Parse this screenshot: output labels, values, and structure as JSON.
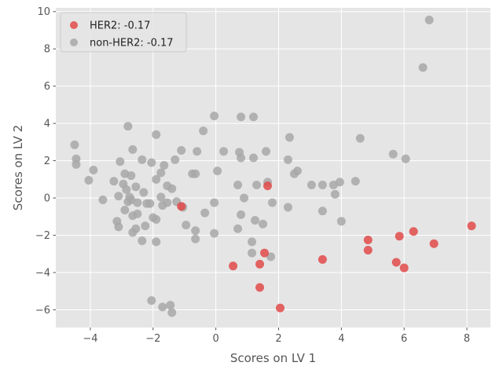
{
  "chart_data": {
    "type": "scatter",
    "title": "",
    "xlabel": "Scores on LV 1",
    "ylabel": "Scores on LV 2",
    "xlim": [
      -5.1,
      8.75
    ],
    "ylim": [
      -6.95,
      10.2
    ],
    "xticks": [
      -4,
      -2,
      0,
      2,
      4,
      6,
      8
    ],
    "yticks": [
      -6,
      -4,
      -2,
      0,
      2,
      4,
      6,
      8,
      10
    ],
    "grid": true,
    "legend_position": "top-left",
    "series": [
      {
        "name": "HER2: -0.17",
        "color": "#e24a4a",
        "points": [
          [
            -1.1,
            -0.45
          ],
          [
            0.55,
            -3.65
          ],
          [
            1.4,
            -3.55
          ],
          [
            1.55,
            -2.95
          ],
          [
            1.65,
            0.65
          ],
          [
            1.4,
            -4.8
          ],
          [
            2.05,
            -5.9
          ],
          [
            3.4,
            -3.3
          ],
          [
            4.85,
            -2.25
          ],
          [
            4.85,
            -2.8
          ],
          [
            5.75,
            -3.45
          ],
          [
            5.85,
            -2.05
          ],
          [
            6.0,
            -3.75
          ],
          [
            6.3,
            -1.8
          ],
          [
            6.95,
            -2.45
          ],
          [
            8.15,
            -1.5
          ]
        ]
      },
      {
        "name": "non-HER2: -0.17",
        "color": "#a8a8a8",
        "points": [
          [
            -4.5,
            2.85
          ],
          [
            -4.45,
            2.1
          ],
          [
            -4.45,
            1.8
          ],
          [
            -4.05,
            0.95
          ],
          [
            -3.9,
            1.5
          ],
          [
            -3.6,
            -0.1
          ],
          [
            -3.25,
            0.9
          ],
          [
            -3.15,
            -1.25
          ],
          [
            -3.1,
            -1.55
          ],
          [
            -3.1,
            0.1
          ],
          [
            -3.05,
            1.95
          ],
          [
            -2.95,
            0.75
          ],
          [
            -2.9,
            1.3
          ],
          [
            -2.9,
            -0.65
          ],
          [
            -2.85,
            0.45
          ],
          [
            -2.8,
            3.85
          ],
          [
            -2.8,
            -0.2
          ],
          [
            -2.75,
            0.05
          ],
          [
            -2.7,
            1.2
          ],
          [
            -2.7,
            -0.1
          ],
          [
            -2.65,
            2.6
          ],
          [
            -2.65,
            -0.95
          ],
          [
            -2.65,
            -1.85
          ],
          [
            -2.55,
            -1.65
          ],
          [
            -2.55,
            0.6
          ],
          [
            -2.5,
            -0.25
          ],
          [
            -2.5,
            -0.85
          ],
          [
            -2.35,
            -2.3
          ],
          [
            -2.35,
            2.05
          ],
          [
            -2.3,
            0.3
          ],
          [
            -2.25,
            -1.5
          ],
          [
            -2.2,
            -0.3
          ],
          [
            -2.1,
            -0.3
          ],
          [
            -2.05,
            1.9
          ],
          [
            -2.05,
            -5.5
          ],
          [
            -2.0,
            -1.05
          ],
          [
            -1.9,
            3.4
          ],
          [
            -1.9,
            1.0
          ],
          [
            -1.9,
            -1.15
          ],
          [
            -1.9,
            -2.35
          ],
          [
            -1.75,
            1.35
          ],
          [
            -1.75,
            0.05
          ],
          [
            -1.7,
            -0.4
          ],
          [
            -1.7,
            -5.85
          ],
          [
            -1.65,
            1.75
          ],
          [
            -1.55,
            0.65
          ],
          [
            -1.55,
            -0.25
          ],
          [
            -1.45,
            -5.75
          ],
          [
            -1.4,
            -6.15
          ],
          [
            -1.4,
            0.5
          ],
          [
            -1.3,
            2.05
          ],
          [
            -1.25,
            -0.2
          ],
          [
            -1.1,
            2.55
          ],
          [
            -1.05,
            -0.5
          ],
          [
            -0.95,
            -1.45
          ],
          [
            -0.75,
            1.3
          ],
          [
            -0.65,
            1.3
          ],
          [
            -0.65,
            -1.75
          ],
          [
            -0.65,
            -2.2
          ],
          [
            -0.6,
            2.5
          ],
          [
            -0.4,
            3.6
          ],
          [
            -0.35,
            -0.8
          ],
          [
            -0.05,
            4.4
          ],
          [
            -0.05,
            -1.9
          ],
          [
            -0.05,
            -0.25
          ],
          [
            0.05,
            1.45
          ],
          [
            0.25,
            2.5
          ],
          [
            0.7,
            0.7
          ],
          [
            0.7,
            -1.65
          ],
          [
            0.75,
            2.45
          ],
          [
            0.8,
            -0.9
          ],
          [
            0.8,
            4.35
          ],
          [
            0.8,
            2.15
          ],
          [
            0.9,
            0.0
          ],
          [
            1.15,
            -2.35
          ],
          [
            1.15,
            -2.95
          ],
          [
            1.2,
            4.35
          ],
          [
            1.2,
            2.15
          ],
          [
            1.25,
            -1.2
          ],
          [
            1.3,
            0.7
          ],
          [
            1.5,
            -1.4
          ],
          [
            1.6,
            2.5
          ],
          [
            1.65,
            0.85
          ],
          [
            1.75,
            -3.15
          ],
          [
            1.8,
            -0.25
          ],
          [
            2.3,
            2.05
          ],
          [
            2.3,
            -0.5
          ],
          [
            2.35,
            3.25
          ],
          [
            2.5,
            1.3
          ],
          [
            2.6,
            1.45
          ],
          [
            3.05,
            0.7
          ],
          [
            3.4,
            0.7
          ],
          [
            3.4,
            -0.7
          ],
          [
            3.75,
            0.7
          ],
          [
            3.8,
            0.2
          ],
          [
            3.95,
            0.85
          ],
          [
            4.0,
            -1.25
          ],
          [
            4.45,
            0.9
          ],
          [
            4.6,
            3.2
          ],
          [
            5.65,
            2.35
          ],
          [
            6.05,
            2.1
          ],
          [
            6.6,
            7.0
          ],
          [
            6.8,
            9.55
          ]
        ]
      }
    ]
  }
}
